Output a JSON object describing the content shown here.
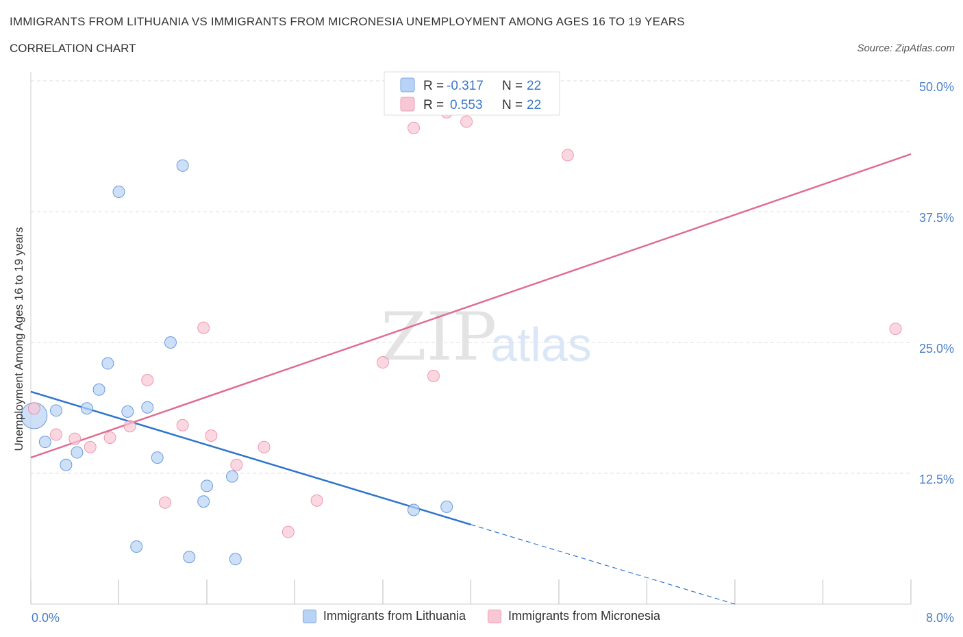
{
  "header": {
    "title": "IMMIGRANTS FROM LITHUANIA VS IMMIGRANTS FROM MICRONESIA UNEMPLOYMENT AMONG AGES 16 TO 19 YEARS",
    "subtitle": "CORRELATION CHART",
    "source": "Source: ZipAtlas.com"
  },
  "watermark": {
    "zip": "ZIP",
    "atlas": "atlas"
  },
  "stats_legend": {
    "rows": [
      {
        "r_label": "R =",
        "r_value": "-0.317",
        "n_label": "N =",
        "n_value": "22",
        "color": "#b8d3f5"
      },
      {
        "r_label": "R =",
        "r_value": "0.553",
        "n_label": "N =",
        "n_value": "22",
        "color": "#f8c6d4"
      }
    ]
  },
  "chart_data": {
    "type": "scatter",
    "title": "IMMIGRANTS FROM LITHUANIA VS IMMIGRANTS FROM MICRONESIA UNEMPLOYMENT AMONG AGES 16 TO 19 YEARS",
    "xlabel": "",
    "ylabel": "Unemployment Among Ages 16 to 19 years",
    "xlim": [
      0,
      8
    ],
    "ylim": [
      0,
      50
    ],
    "x_tick_labels": [
      "0.0%",
      "8.0%"
    ],
    "y_ticks": [
      12.5,
      25.0,
      37.5,
      50.0
    ],
    "y_tick_labels": [
      "12.5%",
      "25.0%",
      "37.5%",
      "50.0%"
    ],
    "grid": true,
    "legend_position": "bottom-center",
    "series": [
      {
        "name": "Immigrants from Lithuania",
        "color": "#4a86d4",
        "fill": "#b8d3f5",
        "line_color": "#2f74cc",
        "points": [
          {
            "x": 0.03,
            "y": 18.0,
            "big": true
          },
          {
            "x": 0.13,
            "y": 15.5
          },
          {
            "x": 0.23,
            "y": 18.5
          },
          {
            "x": 0.32,
            "y": 13.3
          },
          {
            "x": 0.42,
            "y": 14.5
          },
          {
            "x": 0.51,
            "y": 18.7
          },
          {
            "x": 0.62,
            "y": 20.5
          },
          {
            "x": 0.7,
            "y": 23.0
          },
          {
            "x": 0.8,
            "y": 39.4
          },
          {
            "x": 0.88,
            "y": 18.4
          },
          {
            "x": 0.96,
            "y": 5.5
          },
          {
            "x": 1.06,
            "y": 18.8
          },
          {
            "x": 1.15,
            "y": 14.0
          },
          {
            "x": 1.27,
            "y": 25.0
          },
          {
            "x": 1.38,
            "y": 41.9
          },
          {
            "x": 1.44,
            "y": 4.5
          },
          {
            "x": 1.57,
            "y": 9.8
          },
          {
            "x": 1.6,
            "y": 11.3
          },
          {
            "x": 1.83,
            "y": 12.2
          },
          {
            "x": 1.86,
            "y": 4.3
          },
          {
            "x": 3.48,
            "y": 9.0
          },
          {
            "x": 3.78,
            "y": 9.3
          }
        ],
        "trend": {
          "x": [
            0.0,
            4.0
          ],
          "y": [
            20.3,
            7.6
          ],
          "dashed_to": [
            6.4,
            0.0
          ]
        }
      },
      {
        "name": "Immigrants from Micronesia",
        "color": "#e8849f",
        "fill": "#f8c6d4",
        "line_color": "#e06d93",
        "points": [
          {
            "x": 0.03,
            "y": 18.7
          },
          {
            "x": 0.23,
            "y": 16.2
          },
          {
            "x": 0.4,
            "y": 15.8
          },
          {
            "x": 0.54,
            "y": 15.0
          },
          {
            "x": 0.72,
            "y": 15.9
          },
          {
            "x": 0.9,
            "y": 17.0
          },
          {
            "x": 1.06,
            "y": 21.4
          },
          {
            "x": 1.22,
            "y": 9.7
          },
          {
            "x": 1.38,
            "y": 17.1
          },
          {
            "x": 1.57,
            "y": 26.4
          },
          {
            "x": 1.64,
            "y": 16.1
          },
          {
            "x": 1.87,
            "y": 13.3
          },
          {
            "x": 2.12,
            "y": 15.0
          },
          {
            "x": 2.34,
            "y": 6.9
          },
          {
            "x": 2.6,
            "y": 9.9
          },
          {
            "x": 3.2,
            "y": 23.1
          },
          {
            "x": 3.48,
            "y": 45.5
          },
          {
            "x": 3.66,
            "y": 21.8
          },
          {
            "x": 3.78,
            "y": 47.0
          },
          {
            "x": 3.96,
            "y": 46.1
          },
          {
            "x": 4.88,
            "y": 42.9
          },
          {
            "x": 7.86,
            "y": 26.3
          }
        ],
        "trend": {
          "x": [
            0.0,
            8.0
          ],
          "y": [
            14.0,
            43.0
          ]
        }
      }
    ]
  }
}
